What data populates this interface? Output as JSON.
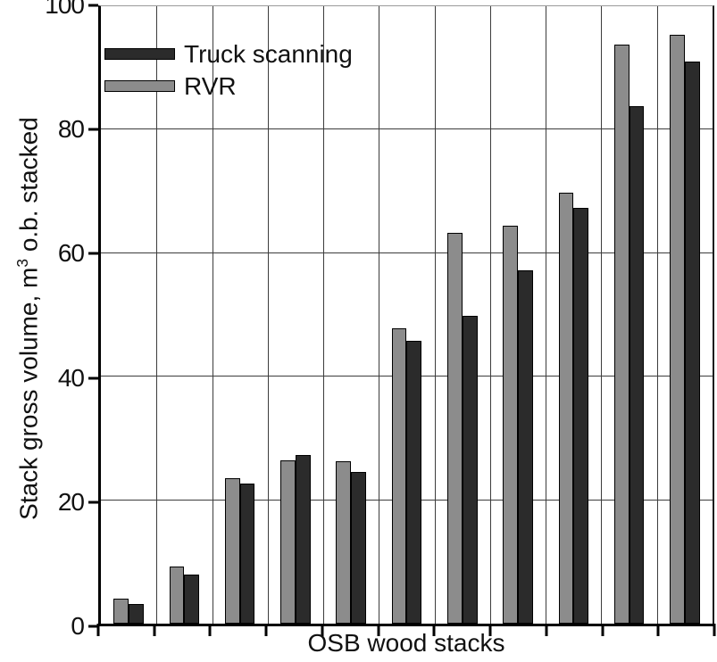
{
  "figure": {
    "background": "#ffffff",
    "legend": {
      "position": "top-left",
      "items": [
        {
          "label": "Truck scanning",
          "color": "#2b2b2b"
        },
        {
          "label": "RVR",
          "color": "#8c8c8c"
        }
      ]
    },
    "y_axis": {
      "label_prefix": "Stack gross volume, m",
      "label_sup": "3",
      "label_suffix": " o.b. stacked",
      "ticks": [
        0,
        20,
        40,
        60,
        80,
        100
      ]
    },
    "x_axis": {
      "label": "OSB wood stacks",
      "n_groups": 11
    }
  },
  "chart_data": {
    "type": "bar",
    "title": "",
    "xlabel": "OSB wood stacks",
    "ylabel": "Stack gross volume, m3 o.b. stacked",
    "n_groups": 11,
    "bar_order_in_group": [
      "RVR",
      "Truck scanning"
    ],
    "legend_order": [
      "Truck scanning",
      "RVR"
    ],
    "series": [
      {
        "name": "RVR",
        "color": "#8c8c8c",
        "values": [
          4.0,
          9.2,
          23.6,
          26.5,
          26.3,
          47.8,
          63.3,
          64.4,
          69.8,
          93.8,
          95.4
        ]
      },
      {
        "name": "Truck scanning",
        "color": "#2b2b2b",
        "values": [
          3.2,
          8.0,
          22.7,
          27.3,
          24.5,
          45.8,
          49.9,
          57.2,
          67.4,
          83.8,
          91.0
        ]
      }
    ],
    "ylim": [
      0,
      100
    ],
    "yticks": [
      0,
      20,
      40,
      60,
      80,
      100
    ],
    "grid": true,
    "gridline_color": "#3c3c3c",
    "legend_position": "top-left"
  }
}
